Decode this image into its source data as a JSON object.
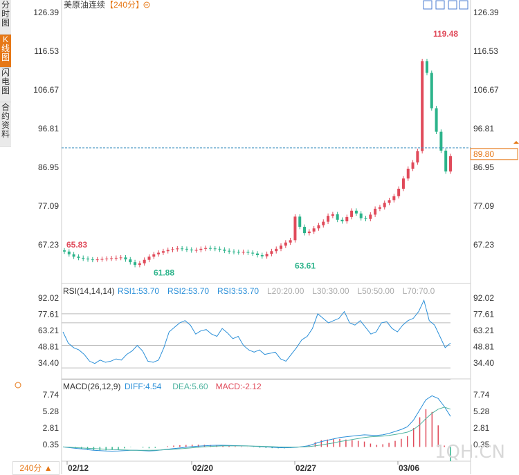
{
  "tabs": [
    {
      "label": "分时图",
      "active": false
    },
    {
      "label": "K线图",
      "active": true
    },
    {
      "label": "闪电图",
      "active": false
    },
    {
      "label": "合约资料",
      "active": false
    }
  ],
  "header": {
    "instrument": "美原油连续",
    "period": "【240分】",
    "period_icon": "circle-minus-icon"
  },
  "toolbar_icons": [
    "crosshair-icon",
    "expand-icon",
    "image-icon",
    "grid-icon"
  ],
  "colors": {
    "up": "#e04a5a",
    "down": "#2bb38a",
    "dash_line": "#3a8fbf",
    "accent": "#e67817",
    "rsi": "#2a8fd8",
    "dea": "#4fb3a0",
    "macd_up": "#e04a5a",
    "macd_down": "#2bb38a"
  },
  "bottom": {
    "period_label": "240分",
    "arrow": "▲"
  },
  "watermark": "1QH.CN",
  "chart_data": [
    {
      "type": "candlestick",
      "title": "美原油连续【240分】",
      "y_ticks": [
        "126.39",
        "116.53",
        "106.67",
        "96.81",
        "86.95",
        "77.09",
        "67.23"
      ],
      "ylim": [
        58.0,
        128.0
      ],
      "x_ticks": [
        "02/12",
        "02/20",
        "02/27",
        "03/06"
      ],
      "annotations": [
        {
          "label": "65.83",
          "value": 65.83,
          "color": "up"
        },
        {
          "label": "61.88",
          "value": 61.88,
          "color": "down"
        },
        {
          "label": "63.61",
          "value": 63.61,
          "color": "down"
        },
        {
          "label": "119.48",
          "value": 119.48,
          "color": "up"
        }
      ],
      "last_price": {
        "label": "89.80",
        "value": 89.8
      },
      "close_series": [
        65.5,
        64.8,
        64.2,
        63.9,
        63.7,
        63.5,
        63.4,
        63.5,
        63.6,
        63.7,
        63.8,
        63.9,
        64.0,
        63.5,
        62.8,
        62.1,
        62.5,
        63.4,
        64.2,
        64.8,
        65.2,
        65.6,
        65.9,
        66.1,
        66.3,
        66.2,
        66.0,
        65.8,
        65.9,
        66.2,
        66.4,
        66.3,
        66.2,
        66.0,
        65.7,
        65.5,
        65.4,
        65.3,
        65.4,
        65.2,
        65.0,
        64.6,
        64.3,
        64.9,
        65.6,
        66.2,
        67.0,
        67.8,
        68.4,
        74.4,
        71.8,
        70.2,
        70.6,
        71.4,
        72.2,
        73.1,
        74.6,
        75.0,
        73.6,
        73.2,
        74.3,
        75.9,
        75.2,
        74.0,
        73.8,
        74.9,
        76.4,
        76.8,
        77.9,
        78.6,
        79.6,
        81.5,
        84.1,
        86.6,
        88.2,
        91.1,
        114.0,
        111.0,
        102.0,
        96.0,
        91.2,
        85.9,
        89.8
      ],
      "candles_visible": 88
    },
    {
      "type": "line",
      "title": "RSI(14,14,14)",
      "legend": [
        {
          "name": "RSI1:53.70",
          "color": "rsi"
        },
        {
          "name": "RSI2:53.70",
          "color": "rsi"
        },
        {
          "name": "RSI3:53.70",
          "color": "rsi"
        },
        {
          "name": "L20:20.00",
          "color": "gray"
        },
        {
          "name": "L30:30.00",
          "color": "gray"
        },
        {
          "name": "L50:50.00",
          "color": "gray"
        },
        {
          "name": "L70:70.0",
          "color": "gray"
        }
      ],
      "y_ticks": [
        "92.02",
        "77.61",
        "63.21",
        "48.81",
        "34.40"
      ],
      "ylim": [
        20,
        96
      ],
      "levels": [
        78,
        70,
        50,
        30,
        20
      ],
      "values": [
        62,
        52,
        48,
        46,
        42,
        36,
        34,
        37,
        35,
        36,
        38,
        37,
        42,
        45,
        50,
        45,
        36,
        35,
        37,
        48,
        62,
        66,
        70,
        72,
        68,
        60,
        63,
        64,
        60,
        58,
        65,
        61,
        56,
        58,
        50,
        46,
        44,
        46,
        42,
        43,
        44,
        38,
        36,
        42,
        48,
        55,
        58,
        65,
        78,
        74,
        70,
        72,
        74,
        80,
        70,
        68,
        72,
        66,
        60,
        62,
        70,
        71,
        65,
        62,
        68,
        72,
        74,
        80,
        90,
        72,
        68,
        58,
        48,
        52
      ]
    },
    {
      "type": "bar_line",
      "title": "MACD(26,12,9)",
      "legend": [
        {
          "name": "DIFF:4.54",
          "color": "rsi"
        },
        {
          "name": "DEA:5.60",
          "color": "dea"
        },
        {
          "name": "MACD:-2.12",
          "color": "macd_up"
        }
      ],
      "y_ticks": [
        "7.74",
        "5.28",
        "2.81",
        "0.35"
      ],
      "ylim": [
        -1.2,
        8.2
      ],
      "diff": [
        0.0,
        -0.1,
        -0.2,
        -0.3,
        -0.4,
        -0.5,
        -0.55,
        -0.6,
        -0.62,
        -0.6,
        -0.55,
        -0.5,
        -0.5,
        -0.55,
        -0.6,
        -0.55,
        -0.45,
        -0.35,
        -0.25,
        -0.15,
        -0.05,
        0.05,
        0.12,
        0.18,
        0.22,
        0.25,
        0.25,
        0.22,
        0.2,
        0.18,
        0.15,
        0.1,
        0.05,
        0.0,
        -0.05,
        -0.1,
        -0.12,
        -0.1,
        -0.05,
        0.05,
        0.2,
        0.5,
        0.8,
        1.0,
        1.2,
        1.4,
        1.5,
        1.6,
        1.7,
        1.8,
        1.75,
        1.7,
        1.8,
        2.0,
        2.3,
        2.6,
        3.0,
        4.0,
        5.5,
        7.0,
        7.6,
        7.2,
        6.0,
        4.54
      ],
      "dea": [
        0.0,
        -0.05,
        -0.1,
        -0.15,
        -0.2,
        -0.25,
        -0.3,
        -0.35,
        -0.4,
        -0.42,
        -0.45,
        -0.48,
        -0.5,
        -0.5,
        -0.5,
        -0.48,
        -0.45,
        -0.4,
        -0.35,
        -0.28,
        -0.2,
        -0.12,
        -0.05,
        0.02,
        0.08,
        0.12,
        0.15,
        0.16,
        0.16,
        0.15,
        0.14,
        0.12,
        0.1,
        0.07,
        0.04,
        0.0,
        -0.02,
        -0.03,
        -0.02,
        0.0,
        0.05,
        0.15,
        0.3,
        0.45,
        0.6,
        0.8,
        0.95,
        1.1,
        1.25,
        1.4,
        1.5,
        1.55,
        1.6,
        1.7,
        1.85,
        2.0,
        2.2,
        2.6,
        3.3,
        4.2,
        5.0,
        5.6,
        5.9,
        5.6
      ]
    }
  ]
}
